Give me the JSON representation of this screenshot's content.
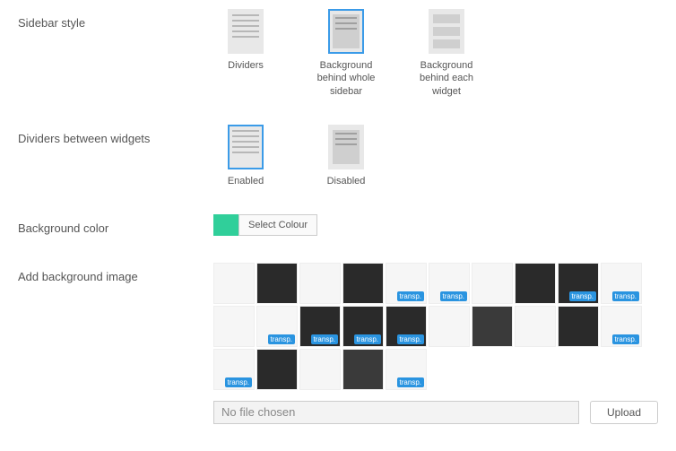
{
  "labels": {
    "sidebar_style": "Sidebar style",
    "dividers_between": "Dividers between widgets",
    "background_color": "Background color",
    "add_bg_image": "Add background image"
  },
  "sidebar_options": [
    {
      "label": "Dividers",
      "selected": false,
      "thumb": "lines"
    },
    {
      "label": "Background behind whole sidebar",
      "selected": true,
      "thumb": "filled"
    },
    {
      "label": "Background behind each widget",
      "selected": false,
      "thumb": "blocks"
    }
  ],
  "divider_options": [
    {
      "label": "Enabled",
      "selected": true,
      "thumb": "lines"
    },
    {
      "label": "Disabled",
      "selected": false,
      "thumb": "filled"
    }
  ],
  "color": {
    "hex": "#30cf9a",
    "button_label": "Select Colour"
  },
  "swatches": [
    {
      "tone": "light",
      "transp": false
    },
    {
      "tone": "dark",
      "transp": false
    },
    {
      "tone": "light",
      "transp": false
    },
    {
      "tone": "dark",
      "transp": false
    },
    {
      "tone": "light",
      "transp": true
    },
    {
      "tone": "light",
      "transp": true
    },
    {
      "tone": "light",
      "transp": false
    },
    {
      "tone": "dark",
      "transp": false
    },
    {
      "tone": "dark",
      "transp": true
    },
    {
      "tone": "light",
      "transp": true
    },
    {
      "tone": "light",
      "transp": false
    },
    {
      "tone": "light",
      "transp": true
    },
    {
      "tone": "dark",
      "transp": true
    },
    {
      "tone": "dark",
      "transp": true
    },
    {
      "tone": "dark",
      "transp": true
    },
    {
      "tone": "light",
      "transp": false
    },
    {
      "tone": "grey",
      "transp": false
    },
    {
      "tone": "light",
      "transp": false
    },
    {
      "tone": "dark",
      "transp": false
    },
    {
      "tone": "light",
      "transp": true
    },
    {
      "tone": "light",
      "transp": true
    },
    {
      "tone": "dark",
      "transp": false
    },
    {
      "tone": "light",
      "transp": false
    },
    {
      "tone": "grey",
      "transp": false
    },
    {
      "tone": "light",
      "transp": true
    }
  ],
  "badge_label": "transp.",
  "upload": {
    "placeholder": "No file chosen",
    "button_label": "Upload"
  },
  "colors": {
    "accent_blue": "#3b9be8",
    "badge_bg": "#2a94e0",
    "text": "#555555"
  }
}
